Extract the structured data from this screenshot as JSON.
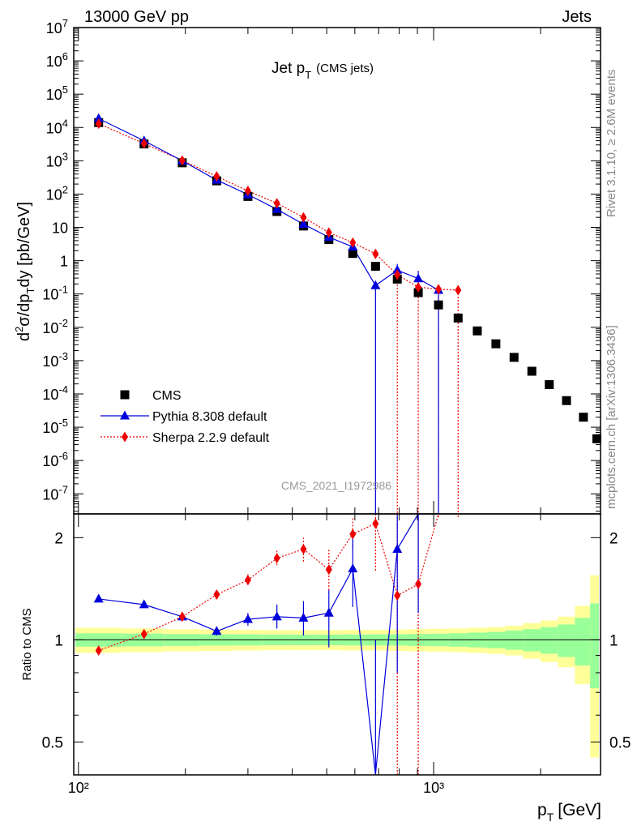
{
  "header": {
    "left": "13000 GeV pp",
    "right": "Jets"
  },
  "side_labels": {
    "rivet": "Rivet 3.1.10, ≥ 2.6M events",
    "mcplots": "mcplots.cern.ch [arXiv:1306.3436]"
  },
  "chart_data": {
    "type": "scatter",
    "title": "Jet p_T (CMS jets)",
    "title_main": "Jet p",
    "title_sub": "T",
    "title_extra": "(CMS jets)",
    "watermark": "CMS_2021_I1972986",
    "xlabel": "p_T [GeV]",
    "xlabel_main": "p",
    "xlabel_sub": "T",
    "xlabel_unit": "[GeV]",
    "ylabel": "d²σ/dp_T dy [pb/GeV]",
    "ratio_ylabel": "Ratio to CMS",
    "x_scale": "log",
    "y_scale": "log",
    "xlim": [
      97,
      2950
    ],
    "ylim": [
      2.5e-08,
      10000000.0
    ],
    "ratio_ylim": [
      0.4,
      2.35
    ],
    "x_ticklabels": [
      "10²",
      "10³"
    ],
    "ratio_ticklabels": [
      "0.5",
      "1",
      "2"
    ],
    "legend_position": "bottom-left",
    "series": [
      {
        "name": "CMS",
        "color": "#000000",
        "marker": "square",
        "x": [
          114,
          153,
          196,
          245,
          300,
          362,
          430,
          507,
          592,
          686,
          790,
          905,
          1032,
          1172,
          1327,
          1497,
          1684,
          1890,
          2116,
          2366,
          2640,
          2880
        ],
        "y": [
          14000,
          3200,
          870,
          250,
          85,
          30,
          11,
          4.3,
          1.65,
          0.68,
          0.28,
          0.11,
          0.047,
          0.019,
          0.0078,
          0.0032,
          0.00125,
          0.00048,
          0.00019,
          6.3e-05,
          2e-05,
          4.5e-06
        ]
      },
      {
        "name": "Pythia 8.308 default",
        "color": "#0000dd",
        "marker": "triangle",
        "line": "solid",
        "x": [
          114,
          153,
          196,
          245,
          300,
          362,
          430,
          507,
          592,
          686,
          790,
          905,
          1032
        ],
        "y": [
          18500,
          4000,
          1000,
          265,
          97,
          35,
          12.5,
          5.1,
          2.6,
          0.18,
          0.52,
          0.29,
          0.13
        ],
        "ratio": [
          1.32,
          1.27,
          1.17,
          1.06,
          1.15,
          1.17,
          1.16,
          1.2,
          1.62,
          0.3,
          1.85,
          2.6,
          2.8
        ]
      },
      {
        "name": "Sherpa 2.2.9 default",
        "color": "#ee0000",
        "marker": "diamond",
        "line": "dotted",
        "x": [
          114,
          153,
          196,
          245,
          300,
          362,
          430,
          507,
          592,
          686,
          790,
          905,
          1032,
          1172
        ],
        "y": [
          13000,
          3300,
          1020,
          340,
          125,
          53,
          20,
          7,
          3.5,
          1.6,
          0.38,
          0.16,
          0.14,
          0.13
        ],
        "ratio": [
          0.93,
          1.04,
          1.17,
          1.36,
          1.5,
          1.74,
          1.85,
          1.61,
          2.05,
          2.2,
          1.35,
          1.46,
          2.6,
          2.9
        ]
      }
    ]
  }
}
